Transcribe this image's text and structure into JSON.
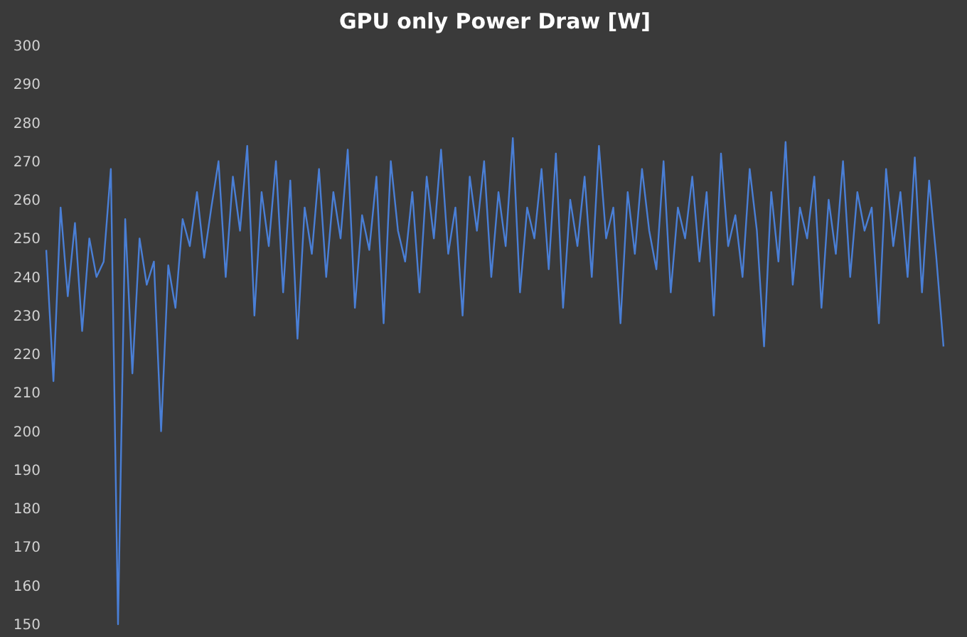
{
  "chart_data": {
    "type": "line",
    "title": "GPU only Power Draw [W]",
    "categories": [
      null,
      null,
      null,
      null,
      null,
      null,
      null,
      null,
      null,
      null,
      null,
      null,
      null,
      null,
      null,
      null,
      null,
      null,
      null,
      null,
      null,
      null,
      null,
      null,
      null,
      null,
      null,
      null,
      null,
      null,
      null,
      null,
      null,
      null,
      null,
      null,
      null,
      null,
      null,
      null,
      null,
      null,
      null,
      null,
      null,
      null,
      null,
      null,
      null,
      null,
      null,
      null,
      null,
      null,
      null,
      null,
      null,
      null,
      null,
      null,
      null,
      null,
      null,
      null,
      null,
      null,
      null,
      null,
      null,
      null,
      null,
      null,
      null,
      null,
      null,
      null,
      null,
      null,
      null,
      null,
      null,
      null,
      null,
      null,
      null,
      null,
      null,
      null,
      null,
      null,
      null,
      null,
      null,
      null,
      null,
      null,
      null,
      null,
      null,
      null,
      null,
      null,
      null,
      null,
      null,
      null,
      null,
      null,
      null,
      null,
      null,
      null,
      null,
      null,
      null,
      null,
      null,
      null,
      null,
      null,
      null,
      null,
      null,
      null,
      null,
      null
    ],
    "series": [
      {
        "color": "#4a7fd6",
        "values": [
          247,
          213,
          258,
          235,
          254,
          226,
          250,
          240,
          244,
          268,
          150,
          255,
          215,
          250,
          238,
          244,
          200,
          243,
          232,
          255,
          248,
          262,
          245,
          258,
          270,
          240,
          266,
          252,
          274,
          230,
          262,
          248,
          270,
          236,
          265,
          224,
          258,
          246,
          268,
          240,
          262,
          250,
          273,
          232,
          256,
          247,
          266,
          228,
          270,
          252,
          244,
          262,
          236,
          266,
          250,
          273,
          246,
          258,
          230,
          266,
          252,
          270,
          240,
          262,
          248,
          276,
          236,
          258,
          250,
          268,
          242,
          272,
          232,
          260,
          248,
          266,
          240,
          274,
          250,
          258,
          228,
          262,
          246,
          268,
          252,
          242,
          270,
          236,
          258,
          250,
          266,
          244,
          262,
          230,
          272,
          248,
          256,
          240,
          268,
          252,
          222,
          262,
          244,
          275,
          238,
          258,
          250,
          266,
          232,
          260,
          246,
          270,
          240,
          262,
          252,
          258,
          228,
          268,
          248,
          262,
          240,
          271,
          236,
          265,
          245,
          222
        ]
      }
    ],
    "ylim": [
      150,
      300
    ],
    "yticks": [
      150,
      160,
      170,
      180,
      190,
      200,
      210,
      220,
      230,
      240,
      250,
      260,
      270,
      280,
      290,
      300
    ],
    "grid": false,
    "legend": false,
    "line_style": "solid",
    "marker": "none"
  }
}
